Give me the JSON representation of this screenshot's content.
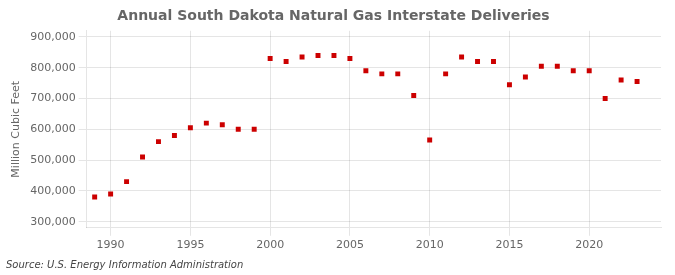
{
  "chart_data": {
    "type": "scatter",
    "title": "Annual South Dakota Natural Gas Interstate Deliveries",
    "y_label": "Million Cubic Feet",
    "annotation": "Source: U.S. Energy Information Administration",
    "x": [
      1989,
      1990,
      1991,
      1992,
      1993,
      1994,
      1995,
      1996,
      1997,
      1998,
      1999,
      2000,
      2001,
      2002,
      2003,
      2004,
      2005,
      2006,
      2007,
      2008,
      2009,
      2010,
      2011,
      2012,
      2013,
      2014,
      2015,
      2016,
      2017,
      2018,
      2019,
      2020,
      2021,
      2022,
      2023
    ],
    "values": [
      380000,
      390000,
      430000,
      510000,
      560000,
      580000,
      605000,
      620000,
      615000,
      600000,
      600000,
      830000,
      820000,
      835000,
      840000,
      840000,
      830000,
      790000,
      780000,
      780000,
      710000,
      565000,
      780000,
      835000,
      820000,
      820000,
      745000,
      770000,
      805000,
      805000,
      790000,
      790000,
      700000,
      760000,
      755000
    ],
    "color": "#cc0000",
    "marker": "square",
    "xlim": [
      1988.5,
      2024.5
    ],
    "xticks": [
      1990,
      1995,
      2000,
      2005,
      2010,
      2015,
      2020
    ],
    "ylim": [
      280000,
      920000
    ],
    "yticks": [
      {
        "value": 300000,
        "label": "300,000"
      },
      {
        "value": 400000,
        "label": "400,000"
      },
      {
        "value": 500000,
        "label": "500,000"
      },
      {
        "value": 600000,
        "label": "600,000"
      },
      {
        "value": 700000,
        "label": "700,000"
      },
      {
        "value": 800000,
        "label": "800,000"
      },
      {
        "value": 900000,
        "label": "900,000"
      }
    ],
    "grid": true
  }
}
